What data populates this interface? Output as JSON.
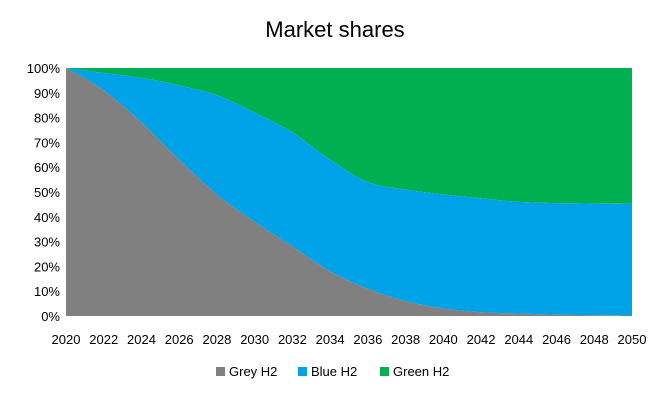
{
  "chart_data": {
    "type": "area",
    "stacked": true,
    "title": "Market shares",
    "xlabel": "",
    "ylabel": "",
    "x": [
      2020,
      2022,
      2024,
      2026,
      2028,
      2030,
      2032,
      2034,
      2036,
      2038,
      2040,
      2042,
      2044,
      2046,
      2048,
      2050
    ],
    "x_tick_labels": [
      "2020",
      "2022",
      "2024",
      "2026",
      "2028",
      "2030",
      "2032",
      "2034",
      "2036",
      "2038",
      "2040",
      "2042",
      "2044",
      "2046",
      "2048",
      "2050"
    ],
    "xlim": [
      2020,
      2050
    ],
    "ylim": [
      0,
      100
    ],
    "y_tick_labels": [
      "0%",
      "10%",
      "20%",
      "30%",
      "40%",
      "50%",
      "60%",
      "70%",
      "80%",
      "90%",
      "100%"
    ],
    "grid": false,
    "legend_position": "bottom",
    "series": [
      {
        "name": "Grey H2",
        "color": "#808080",
        "values": [
          100,
          91,
          78,
          63,
          49,
          38,
          28,
          18,
          11,
          6,
          3,
          1.5,
          1,
          0.5,
          0.3,
          0.2
        ]
      },
      {
        "name": "Blue H2",
        "color": "#00a2e8",
        "values": [
          0,
          7,
          18,
          30,
          40,
          44,
          46,
          45,
          43,
          45,
          46,
          46,
          45,
          45,
          45,
          45
        ]
      },
      {
        "name": "Green H2",
        "color": "#00b050",
        "values": [
          0,
          2,
          4,
          7,
          11,
          18,
          26,
          37,
          46,
          49,
          51,
          52.5,
          54,
          54.5,
          54.7,
          54.8
        ]
      }
    ]
  }
}
